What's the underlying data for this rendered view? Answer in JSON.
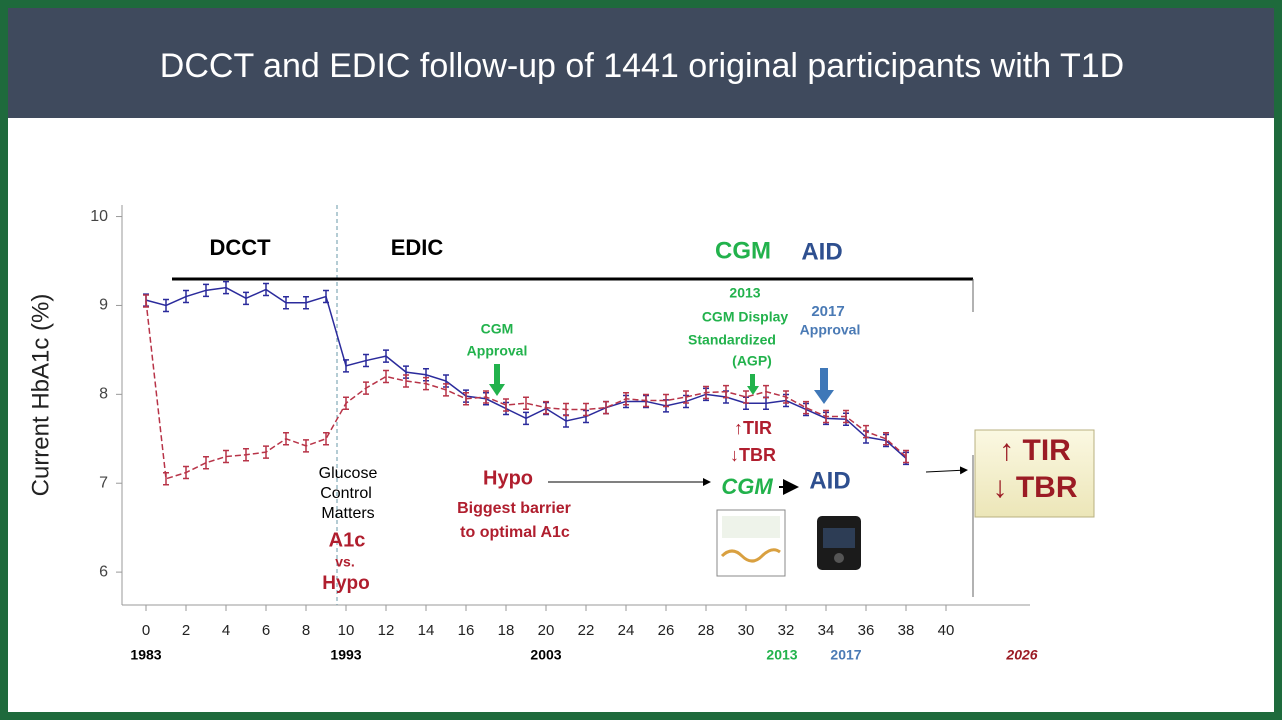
{
  "chart_data": {
    "type": "line",
    "title": "DCCT and EDIC  follow-up of 1441 original participants with T1D",
    "y_label": "Current HbA1c (%)",
    "x": [
      0,
      1,
      2,
      3,
      4,
      5,
      6,
      7,
      8,
      9,
      10,
      11,
      12,
      13,
      14,
      15,
      16,
      17,
      18,
      19,
      20,
      21,
      22,
      23,
      24,
      25,
      26,
      27,
      28,
      29,
      30,
      31,
      32,
      33,
      34,
      35,
      36,
      37,
      38
    ],
    "series": [
      {
        "color": "#2b2b9c",
        "dash": false,
        "values": [
          9.06,
          9.0,
          9.1,
          9.17,
          9.2,
          9.08,
          9.18,
          9.03,
          9.03,
          9.1,
          8.32,
          8.38,
          8.43,
          8.25,
          8.22,
          8.15,
          7.98,
          7.95,
          7.84,
          7.73,
          7.84,
          7.7,
          7.75,
          7.85,
          7.92,
          7.92,
          7.87,
          7.92,
          8.0,
          7.97,
          7.9,
          7.9,
          7.93,
          7.83,
          7.73,
          7.72,
          7.52,
          7.48,
          7.28
        ]
      },
      {
        "color": "#b83448",
        "dash": true,
        "values": [
          9.05,
          7.05,
          7.12,
          7.23,
          7.3,
          7.32,
          7.35,
          7.5,
          7.42,
          7.5,
          7.9,
          8.07,
          8.2,
          8.15,
          8.12,
          8.05,
          7.95,
          7.97,
          7.88,
          7.9,
          7.85,
          7.83,
          7.83,
          7.85,
          7.95,
          7.93,
          7.93,
          7.97,
          8.02,
          8.03,
          7.97,
          8.03,
          7.97,
          7.85,
          7.75,
          7.75,
          7.58,
          7.5,
          7.3
        ]
      }
    ],
    "xlim": [
      -1.2,
      44.2
    ],
    "ylim": [
      5.63,
      10.13
    ],
    "xticks": [
      0,
      2,
      4,
      6,
      8,
      10,
      12,
      14,
      16,
      18,
      20,
      22,
      24,
      26,
      28,
      30,
      32,
      34,
      36,
      38,
      40
    ],
    "yticks": [
      6,
      7,
      8,
      9,
      10
    ],
    "year_ticks": [
      {
        "value": 0,
        "label": "1983"
      },
      {
        "value": 10,
        "label": "1993"
      },
      {
        "value": 20,
        "label": "2003"
      },
      {
        "value": 31.8,
        "label": "2013"
      },
      {
        "value": 35,
        "label": "2017"
      },
      {
        "value": 43.8,
        "label": "2026"
      }
    ],
    "annotations": [
      "DCCT",
      "EDIC",
      "CGM",
      "AID",
      "2013",
      "CGM Display",
      "Standardized",
      "(AGP)",
      "2017",
      "Approval",
      "CGM",
      "Approval",
      "Glucose",
      "Control",
      "Matters",
      "A1c",
      "vs.",
      "Hypo",
      "Hypo",
      "Biggest barrier",
      "to optimal A1c",
      "↑TIR",
      "↓TBR",
      "CGM",
      "AID",
      "↑ TIR",
      "↓ TBR"
    ]
  }
}
